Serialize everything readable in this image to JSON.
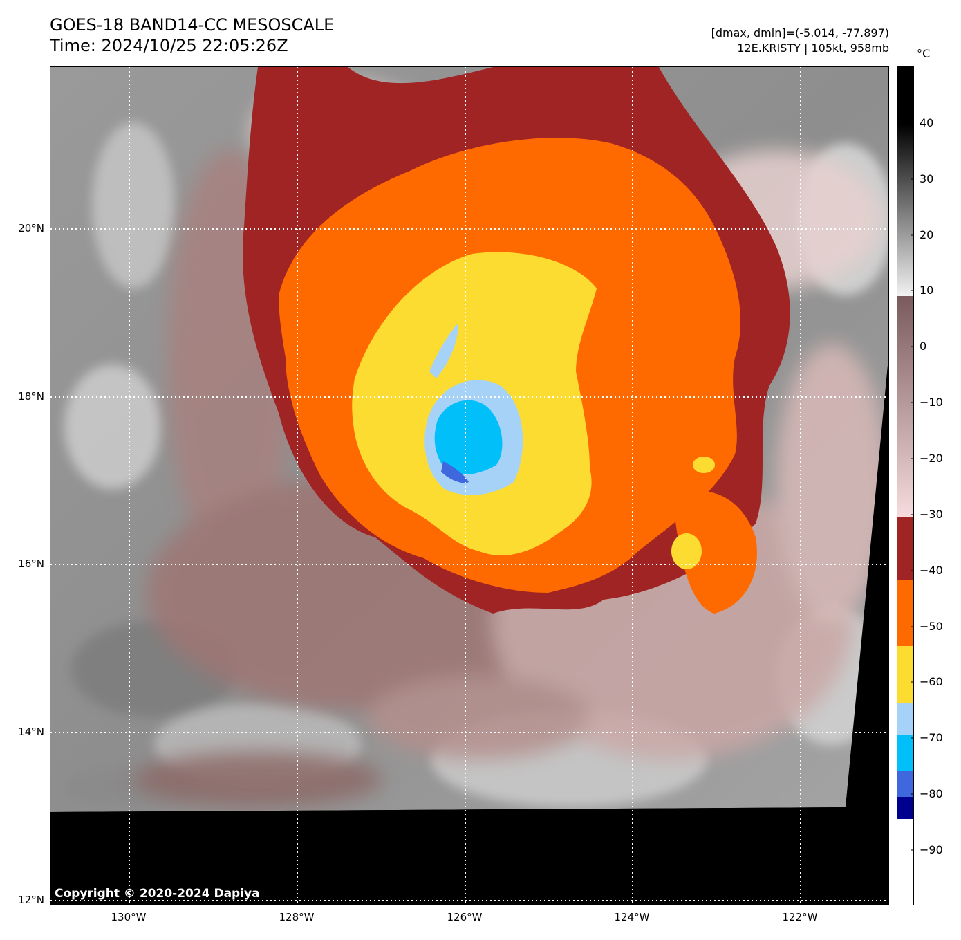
{
  "title": {
    "line1": "GOES-18 BAND14-CC MESOSCALE",
    "line2": "Time: 2024/10/25 22:05:26Z"
  },
  "info": {
    "line1": "[dmax, dmin]=(-5.014, -77.897)",
    "line2": "12E.KRISTY | 105kt, 958mb"
  },
  "map": {
    "lat_labels": [
      "20°N",
      "18°N",
      "16°N",
      "14°N",
      "12°N"
    ],
    "lon_labels": [
      "130°W",
      "128°W",
      "126°W",
      "124°W",
      "122°W"
    ],
    "copyright": "Copyright © 2020-2024 Dapiya"
  },
  "colorbar": {
    "unit": "°C",
    "tick_labels": [
      "40",
      "30",
      "20",
      "10",
      "0",
      "−10",
      "−20",
      "−30",
      "−40",
      "−50",
      "−60",
      "−70",
      "−80",
      "−90"
    ],
    "range": [
      -100,
      50
    ],
    "colors": {
      "black_band": "#000000",
      "gray_light": "#f2f2f2",
      "brown_high": "#7a5a5a",
      "pink_low": "#f6dcdc",
      "dark_red": "#a02424",
      "orange": "#ff6a00",
      "yellow": "#fddc32",
      "light_blue": "#a6d2f8",
      "cyan": "#00bff9",
      "royal_blue": "#3f67de",
      "navy": "#00008f",
      "white": "#ffffff"
    }
  }
}
